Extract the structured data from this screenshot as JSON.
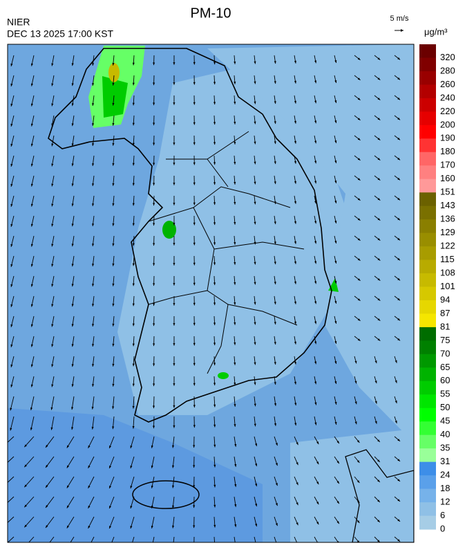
{
  "header": {
    "title": "PM-10",
    "source": "NIER",
    "datetime": "DEC 13 2025 17:00 KST",
    "wind_scale": "5 m/s"
  },
  "legend": {
    "unit": "μg/m³",
    "items": [
      {
        "label": "320",
        "color": "#6b0000"
      },
      {
        "label": "280",
        "color": "#800000"
      },
      {
        "label": "260",
        "color": "#990000"
      },
      {
        "label": "240",
        "color": "#b30000"
      },
      {
        "label": "220",
        "color": "#cc0000"
      },
      {
        "label": "200",
        "color": "#e60000"
      },
      {
        "label": "190",
        "color": "#ff0000"
      },
      {
        "label": "180",
        "color": "#ff3333"
      },
      {
        "label": "170",
        "color": "#ff6666"
      },
      {
        "label": "160",
        "color": "#ff8080"
      },
      {
        "label": "151",
        "color": "#ff9999"
      },
      {
        "label": "143",
        "color": "#6b6100"
      },
      {
        "label": "136",
        "color": "#7a7000"
      },
      {
        "label": "129",
        "color": "#8a7f00"
      },
      {
        "label": "122",
        "color": "#998e00"
      },
      {
        "label": "115",
        "color": "#a89c00"
      },
      {
        "label": "108",
        "color": "#b8ab00"
      },
      {
        "label": "101",
        "color": "#c7ba00"
      },
      {
        "label": "94",
        "color": "#d6c800"
      },
      {
        "label": "87",
        "color": "#e6d700"
      },
      {
        "label": "81",
        "color": "#f5e600"
      },
      {
        "label": "75",
        "color": "#006d00"
      },
      {
        "label": "70",
        "color": "#008000"
      },
      {
        "label": "65",
        "color": "#009900"
      },
      {
        "label": "60",
        "color": "#00b300"
      },
      {
        "label": "55",
        "color": "#00cc00"
      },
      {
        "label": "50",
        "color": "#00e600"
      },
      {
        "label": "45",
        "color": "#00ff00"
      },
      {
        "label": "40",
        "color": "#33ff33"
      },
      {
        "label": "35",
        "color": "#66ff66"
      },
      {
        "label": "31",
        "color": "#99ff99"
      },
      {
        "label": "24",
        "color": "#3d8ee8"
      },
      {
        "label": "18",
        "color": "#5aa0ea"
      },
      {
        "label": "12",
        "color": "#76b2ea"
      },
      {
        "label": "6",
        "color": "#8fc0e6"
      },
      {
        "label": "0",
        "color": "#a6cde6"
      }
    ]
  }
}
